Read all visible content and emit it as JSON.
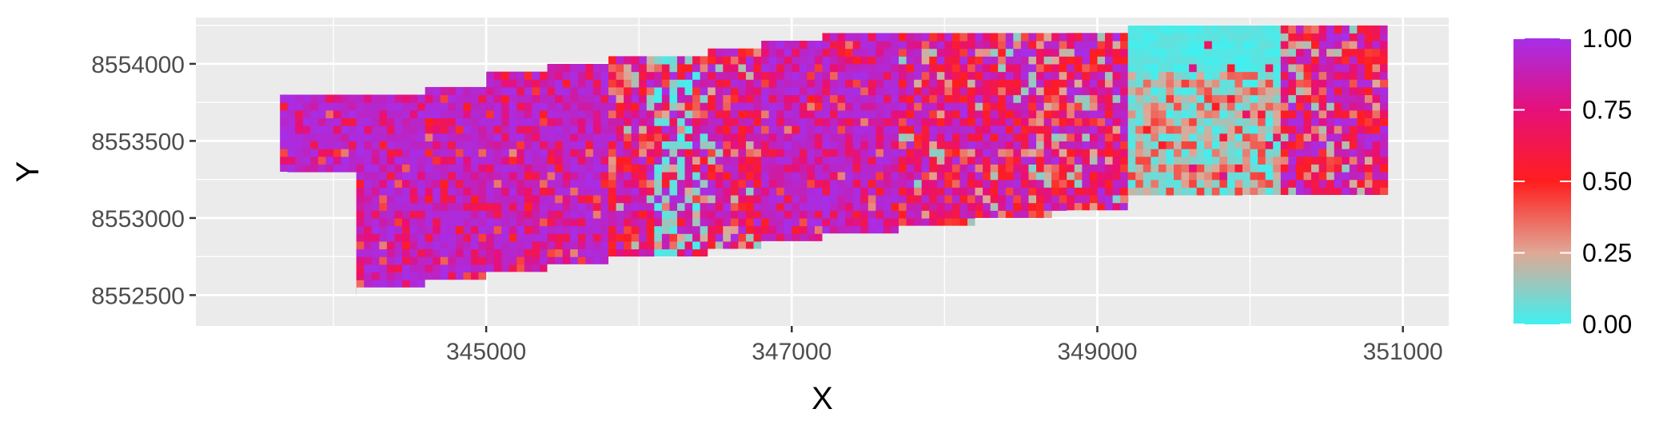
{
  "chart_data": {
    "type": "heatmap",
    "title": "",
    "xlabel": "X",
    "ylabel": "Y",
    "xlim": [
      343100,
      351300
    ],
    "ylim": [
      8552300,
      8554300
    ],
    "x_ticks": [
      345000,
      347000,
      349000,
      351000
    ],
    "x_tick_labels": [
      "345000",
      "347000",
      "349000",
      "351000"
    ],
    "y_ticks": [
      8552500,
      8553000,
      8553500,
      8554000
    ],
    "y_tick_labels": [
      "8552500",
      "8553000",
      "8553500",
      "8554000"
    ],
    "grid": true,
    "panel_background": "#ebebeb",
    "grid_color": "#ffffff",
    "cell_width": 50,
    "cell_height": 50,
    "legend": {
      "position": "right",
      "breaks": [
        1.0,
        0.75,
        0.5,
        0.25,
        0.0
      ],
      "labels": [
        "1.00",
        "0.75",
        "0.50",
        "0.25",
        "0.00"
      ],
      "colors": [
        {
          "value": 0.0,
          "color": "#3ff0f0"
        },
        {
          "value": 0.25,
          "color": "#e0a896"
        },
        {
          "value": 0.5,
          "color": "#ff1e1e"
        },
        {
          "value": 0.75,
          "color": "#e6107a"
        },
        {
          "value": 1.0,
          "color": "#a62ee8"
        }
      ]
    },
    "columns": [
      {
        "x": [
          343650,
          344150
        ],
        "ymin": 8553300,
        "ymax": 8553800,
        "mean": 0.92
      },
      {
        "x": [
          344150,
          344600
        ],
        "ymin": 8552500,
        "ymax": 8553800,
        "mean": 0.9
      },
      {
        "x": [
          344600,
          345000
        ],
        "ymin": 8552550,
        "ymax": 8553850,
        "mean": 0.9
      },
      {
        "x": [
          345000,
          345400
        ],
        "ymin": 8552600,
        "ymax": 8553950,
        "mean": 0.9
      },
      {
        "x": [
          345400,
          345800
        ],
        "ymin": 8552650,
        "ymax": 8554000,
        "mean": 0.9
      },
      {
        "x": [
          345800,
          346100
        ],
        "ymin": 8552700,
        "ymax": 8554050,
        "mean": 0.6
      },
      {
        "x": [
          346100,
          346450
        ],
        "ymin": 8552750,
        "ymax": 8554050,
        "mean": 0.35
      },
      {
        "x": [
          346450,
          346800
        ],
        "ymin": 8552800,
        "ymax": 8554100,
        "mean": 0.6
      },
      {
        "x": [
          346800,
          347200
        ],
        "ymin": 8552850,
        "ymax": 8554150,
        "mean": 0.88
      },
      {
        "x": [
          347200,
          347700
        ],
        "ymin": 8552900,
        "ymax": 8554200,
        "mean": 0.88
      },
      {
        "x": [
          347700,
          348200
        ],
        "ymin": 8552950,
        "ymax": 8554200,
        "mean": 0.8
      },
      {
        "x": [
          348200,
          348700
        ],
        "ymin": 8553000,
        "ymax": 8554200,
        "mean": 0.55
      },
      {
        "x": [
          348700,
          349200
        ],
        "ymin": 8553050,
        "ymax": 8554200,
        "mean": 0.6
      },
      {
        "x": [
          349200,
          350200
        ],
        "ymin": 8553150,
        "ymax": 8554250,
        "mean": 0.12
      },
      {
        "x": [
          350200,
          350550
        ],
        "ymin": 8553150,
        "ymax": 8554250,
        "mean": 0.55
      },
      {
        "x": [
          350550,
          350900
        ],
        "ymin": 8553150,
        "ymax": 8554250,
        "mean": 0.6
      }
    ],
    "outline": [
      [
        343650,
        8553300
      ],
      [
        343650,
        8553800
      ],
      [
        344150,
        8553800
      ],
      [
        344150,
        8553850
      ],
      [
        345000,
        8553850
      ],
      [
        345000,
        8553950
      ],
      [
        345400,
        8553950
      ],
      [
        345400,
        8554000
      ],
      [
        345800,
        8554000
      ],
      [
        345800,
        8554050
      ],
      [
        346450,
        8554050
      ],
      [
        346450,
        8554100
      ],
      [
        346800,
        8554100
      ],
      [
        346800,
        8554150
      ],
      [
        347200,
        8554150
      ],
      [
        347200,
        8554200
      ],
      [
        348800,
        8554200
      ],
      [
        348800,
        8554250
      ],
      [
        350900,
        8554250
      ],
      [
        350900,
        8553900
      ],
      [
        350950,
        8553900
      ],
      [
        350950,
        8553400
      ],
      [
        351000,
        8553400
      ],
      [
        351000,
        8553150
      ],
      [
        349950,
        8553150
      ],
      [
        349950,
        8553100
      ],
      [
        349200,
        8553100
      ],
      [
        349200,
        8553050
      ],
      [
        348800,
        8553050
      ],
      [
        348800,
        8553000
      ],
      [
        348200,
        8553000
      ],
      [
        348200,
        8552950
      ],
      [
        347700,
        8552950
      ],
      [
        347700,
        8552900
      ],
      [
        347200,
        8552900
      ],
      [
        347200,
        8552850
      ],
      [
        346800,
        8552850
      ],
      [
        346800,
        8552800
      ],
      [
        346450,
        8552800
      ],
      [
        346450,
        8552750
      ],
      [
        345800,
        8552750
      ],
      [
        345800,
        8552700
      ],
      [
        345400,
        8552700
      ],
      [
        345400,
        8552650
      ],
      [
        345000,
        8552650
      ],
      [
        345000,
        8552600
      ],
      [
        344600,
        8552600
      ],
      [
        344600,
        8552550
      ],
      [
        344150,
        8552550
      ],
      [
        344150,
        8552500
      ],
      [
        343800,
        8552500
      ],
      [
        343800,
        8552450
      ],
      [
        343750,
        8552450
      ],
      [
        343750,
        8552400
      ],
      [
        343700,
        8552400
      ],
      [
        343700,
        8553300
      ]
    ]
  }
}
